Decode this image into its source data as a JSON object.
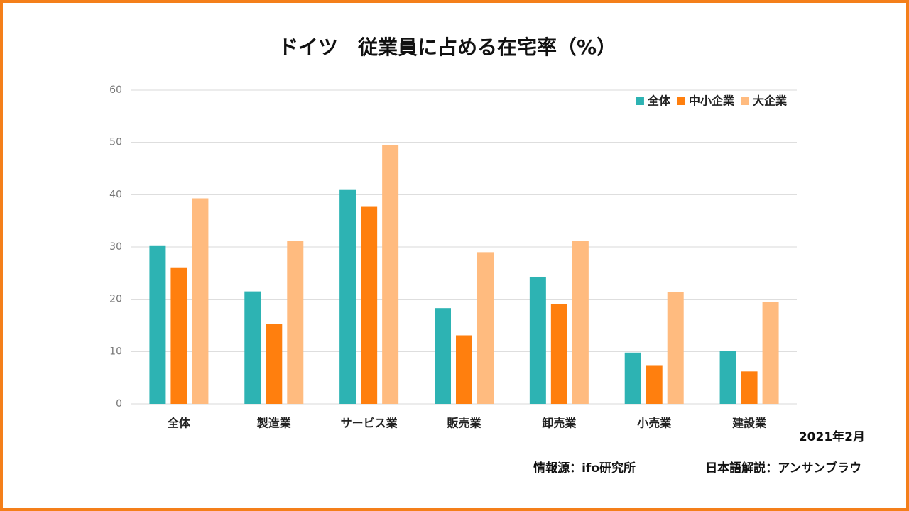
{
  "chart_data": {
    "type": "bar",
    "title": "ドイツ　従業員に占める在宅率（%）",
    "categories": [
      "全体",
      "製造業",
      "サービス業",
      "販売業",
      "卸売業",
      "小売業",
      "建設業"
    ],
    "series": [
      {
        "name": "全体",
        "color": "#2db3b3",
        "values": [
          30.3,
          21.5,
          40.9,
          18.3,
          24.3,
          9.8,
          10.1
        ]
      },
      {
        "name": "中小企業",
        "color": "#ff7f0e",
        "values": [
          26.1,
          15.3,
          37.8,
          13.1,
          19.1,
          7.4,
          6.2
        ]
      },
      {
        "name": "大企業",
        "color": "#ffbb7f",
        "values": [
          39.3,
          31.1,
          49.5,
          29.0,
          31.1,
          21.4,
          19.5
        ]
      }
    ],
    "ylim": [
      0,
      60
    ],
    "yticks": [
      0,
      10,
      20,
      30,
      40,
      50,
      60
    ],
    "grid": true,
    "legend": "top-right",
    "annotations": [
      "2021年2月",
      "情報源：ifo研究所",
      "日本語解説：アンサンブラウ"
    ]
  }
}
